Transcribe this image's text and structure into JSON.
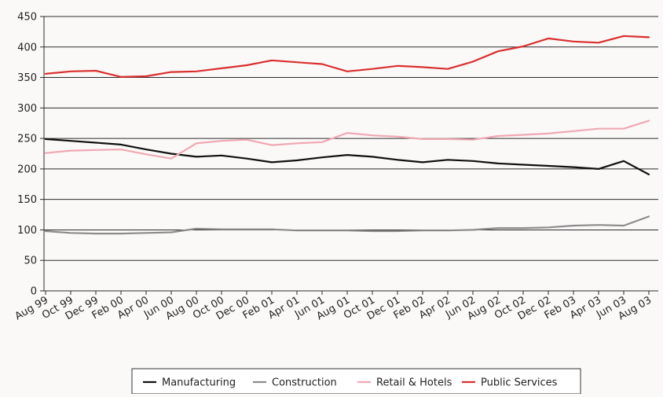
{
  "chart_data": {
    "type": "line",
    "title": "",
    "xlabel": "",
    "ylabel": "",
    "ylim": [
      0,
      450
    ],
    "yticks": [
      0,
      50,
      100,
      150,
      200,
      250,
      300,
      350,
      400,
      450
    ],
    "grid": "horizontal",
    "legend_position": "bottom",
    "x": [
      "Aug 99",
      "Oct 99",
      "Dec 99",
      "Feb 00",
      "Apr 00",
      "Jun 00",
      "Aug 00",
      "Oct 00",
      "Dec 00",
      "Feb 01",
      "Apr 01",
      "Jun 01",
      "Aug 01",
      "Oct 01",
      "Dec 01",
      "Feb 02",
      "Apr 02",
      "Jun 02",
      "Aug 02",
      "Oct 02",
      "Dec 02",
      "Feb 03",
      "Apr 03",
      "Jun 03",
      "Aug 03"
    ],
    "series": [
      {
        "name": "Manufacturing",
        "color": "#111111",
        "values": [
          249,
          246,
          243,
          240,
          232,
          225,
          220,
          222,
          217,
          211,
          214,
          219,
          223,
          220,
          215,
          211,
          215,
          213,
          209,
          207,
          205,
          203,
          200,
          213,
          191
        ]
      },
      {
        "name": "Construction",
        "color": "#8c8c8c",
        "values": [
          98,
          95,
          94,
          94,
          95,
          96,
          102,
          101,
          101,
          101,
          99,
          99,
          99,
          98,
          98,
          99,
          99,
          100,
          103,
          103,
          104,
          107,
          108,
          107,
          122
        ]
      },
      {
        "name": "Retail & Hotels",
        "color": "#f0a8b2",
        "values": [
          226,
          230,
          231,
          232,
          224,
          217,
          242,
          246,
          248,
          239,
          242,
          244,
          259,
          255,
          253,
          249,
          249,
          248,
          254,
          256,
          258,
          262,
          266,
          266,
          279
        ]
      },
      {
        "name": "Public Services",
        "color": "#d9302e",
        "values": [
          356,
          360,
          361,
          351,
          352,
          359,
          360,
          365,
          370,
          378,
          375,
          372,
          360,
          364,
          369,
          367,
          364,
          376,
          393,
          401,
          414,
          409,
          407,
          418,
          416
        ]
      }
    ]
  }
}
